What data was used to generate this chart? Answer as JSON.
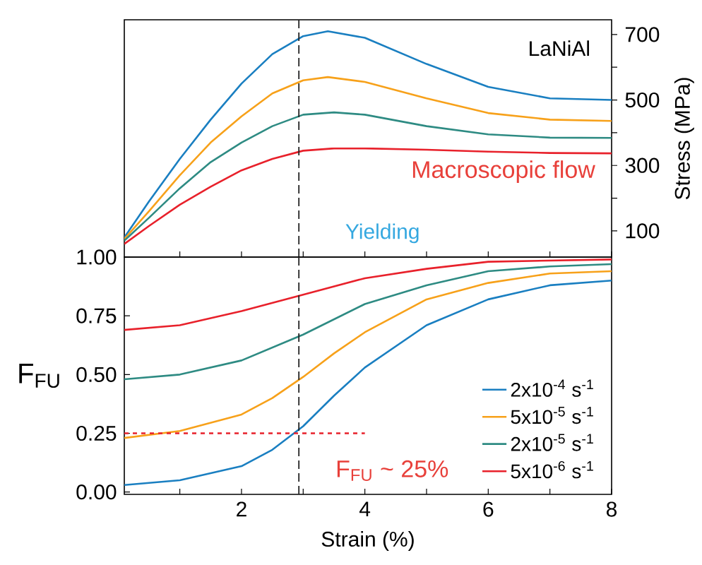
{
  "chart_data": [
    {
      "type": "line",
      "ylabel": "Stress (MPa)",
      "annotations": [
        "LaNiAl",
        "Macroscopic flow",
        "Yielding"
      ],
      "xlim": [
        0.1,
        8
      ],
      "xticks": [
        {
          "value": 1,
          "label": null
        },
        {
          "value": 2,
          "label": null
        },
        {
          "value": 3,
          "label": null
        },
        {
          "value": 4,
          "label": null
        },
        {
          "value": 5,
          "label": null
        },
        {
          "value": 6,
          "label": null
        },
        {
          "value": 7,
          "label": null
        },
        {
          "value": 8,
          "label": null
        }
      ],
      "ylim": [
        20,
        745
      ],
      "yticks": [
        100,
        {
          "value": 200,
          "label": null
        },
        300,
        {
          "value": 400,
          "label": null
        },
        500,
        {
          "value": 600,
          "label": null
        },
        700
      ],
      "tick_labels": "y",
      "marker": "none",
      "line_style": "solid",
      "ref_lines": [
        {
          "axis": "x",
          "value": 2.93,
          "color": "#222222",
          "line_style": "dashed"
        }
      ],
      "series": [
        {
          "color": "#1a7fc1",
          "x": [
            0.1,
            0.5,
            1,
            1.5,
            2,
            2.5,
            3,
            3.4,
            4,
            5,
            6,
            7,
            8
          ],
          "values": [
            80,
            190,
            320,
            440,
            550,
            640,
            695,
            710,
            690,
            610,
            540,
            505,
            500
          ]
        },
        {
          "color": "#f7a11a",
          "x": [
            0.1,
            0.5,
            1,
            1.5,
            2,
            2.5,
            3,
            3.4,
            4,
            5,
            6,
            7,
            8
          ],
          "values": [
            75,
            160,
            270,
            370,
            450,
            520,
            560,
            570,
            555,
            505,
            460,
            440,
            436
          ]
        },
        {
          "color": "#2e8b83",
          "x": [
            0.1,
            0.5,
            1,
            1.5,
            2,
            2.5,
            3,
            3.5,
            4,
            5,
            6,
            7,
            8
          ],
          "values": [
            70,
            140,
            230,
            310,
            370,
            420,
            455,
            462,
            455,
            420,
            395,
            385,
            384
          ]
        },
        {
          "color": "#e8212b",
          "x": [
            0.1,
            0.5,
            1,
            1.5,
            2,
            2.5,
            3,
            3.5,
            4,
            5,
            6,
            7,
            8
          ],
          "values": [
            60,
            115,
            180,
            235,
            285,
            320,
            345,
            352,
            352,
            348,
            342,
            338,
            337
          ]
        }
      ]
    },
    {
      "type": "line",
      "xlabel": "Strain (%)",
      "ylabel": "F$_{FU}$",
      "annotations": [
        "F$_{FU}$ ~ 25%"
      ],
      "xlim": [
        0.1,
        8
      ],
      "xticks": [
        {
          "value": 1,
          "label": null
        },
        2,
        {
          "value": 3,
          "label": null
        },
        4,
        {
          "value": 5,
          "label": null
        },
        6,
        {
          "value": 7,
          "label": null
        },
        8
      ],
      "ylim": [
        -0.01,
        1.0
      ],
      "yticks": [
        {
          "value": 0,
          "label": "0.00"
        },
        {
          "value": 0.25,
          "label": "0.25"
        },
        {
          "value": 0.5,
          "label": "0.50"
        },
        {
          "value": 0.75,
          "label": "0.75"
        },
        {
          "value": 1,
          "label": "1.00"
        }
      ],
      "legend": "bottom right",
      "marker": "none",
      "line_style": "solid",
      "ref_lines": [
        {
          "axis": "x",
          "value": 2.93,
          "color": "#222222",
          "line_style": "dashed"
        }
      ],
      "series": [
        {
          "name": "2x10$^{-4}$ s$^{-1}$",
          "color": "#1a7fc1",
          "x": [
            0.1,
            1,
            2,
            2.5,
            3,
            3.5,
            4,
            5,
            6,
            7,
            8
          ],
          "values": [
            0.03,
            0.05,
            0.11,
            0.18,
            0.28,
            0.41,
            0.53,
            0.71,
            0.82,
            0.88,
            0.9
          ]
        },
        {
          "name": "5x10$^{-5}$ s$^{-1}$",
          "color": "#f7a11a",
          "x": [
            0.1,
            1,
            2,
            2.5,
            3,
            3.5,
            4,
            5,
            6,
            7,
            8
          ],
          "values": [
            0.23,
            0.26,
            0.33,
            0.4,
            0.49,
            0.59,
            0.68,
            0.82,
            0.89,
            0.93,
            0.94
          ]
        },
        {
          "name": "2x10$^{-5}$ s$^{-1}$",
          "color": "#2e8b83",
          "x": [
            0.1,
            1,
            2,
            3,
            4,
            5,
            6,
            7,
            8
          ],
          "values": [
            0.48,
            0.5,
            0.56,
            0.67,
            0.8,
            0.88,
            0.94,
            0.96,
            0.97
          ]
        },
        {
          "name": "5x10$^{-6}$ s$^{-1}$",
          "color": "#e8212b",
          "x": [
            0.1,
            1,
            2,
            3,
            4,
            5,
            6,
            8
          ],
          "values": [
            0.69,
            0.71,
            0.77,
            0.84,
            0.91,
            0.95,
            0.98,
            0.99
          ]
        },
        {
          "color": "#e8212b",
          "line_style": "dashed",
          "x": [
            0.1,
            4
          ],
          "values": [
            0.25,
            0.25
          ]
        }
      ]
    }
  ]
}
